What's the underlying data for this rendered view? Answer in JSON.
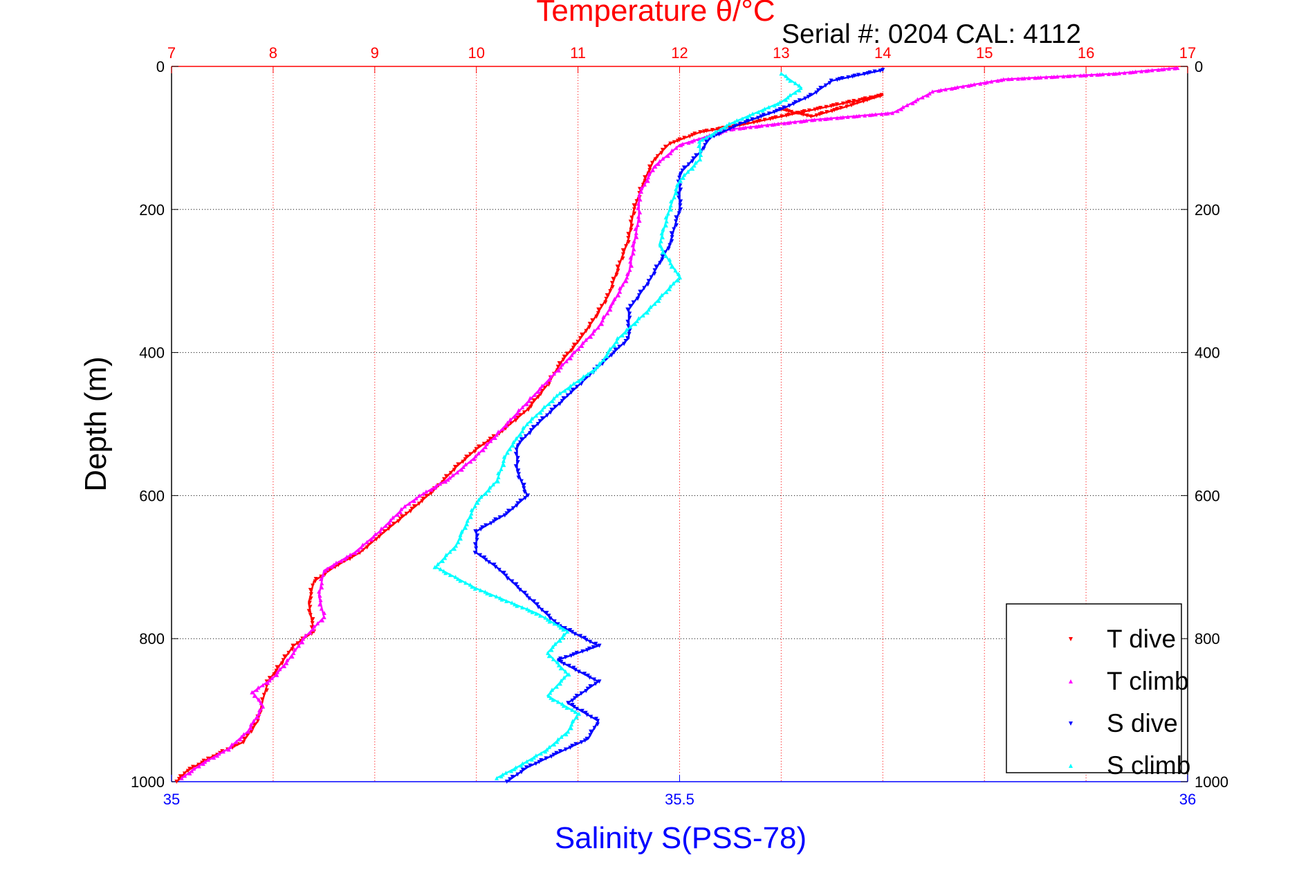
{
  "chart_data": {
    "type": "scatter",
    "title": "Temperature θ/°C",
    "annotation": "Serial #: 0204  CAL: 4112",
    "ylabel": "Depth (m)",
    "xlabel": "Salinity S(PSS-78)",
    "temperature_axis": {
      "position": "top",
      "range": [
        7,
        17
      ],
      "ticks": [
        7,
        8,
        9,
        10,
        11,
        12,
        13,
        14,
        15,
        16,
        17
      ],
      "tick_labels": [
        "7",
        "8",
        "9",
        "10",
        "11",
        "12",
        "13",
        "14",
        "15",
        "16",
        "17"
      ],
      "color": "#ff0000",
      "grid": true
    },
    "salinity_axis": {
      "position": "bottom",
      "range": [
        35,
        36
      ],
      "ticks": [
        35,
        35.5,
        36
      ],
      "tick_labels": [
        "35",
        "35.5",
        "36"
      ],
      "color": "#0000ff"
    },
    "depth_axis": {
      "range": [
        0,
        1000
      ],
      "reversed": true,
      "ticks": [
        0,
        200,
        400,
        600,
        800,
        1000
      ],
      "tick_labels": [
        "0",
        "200",
        "400",
        "600",
        "800",
        "1000"
      ],
      "grid": true
    },
    "legend": {
      "position": "bottom-right"
    },
    "series": [
      {
        "name": "T dive",
        "axis": "temperature",
        "marker": "triangle-down",
        "color": "#ff0000",
        "points": [
          [
            13.0,
            60
          ],
          [
            13.3,
            70
          ],
          [
            13.6,
            58
          ],
          [
            14.0,
            40
          ],
          [
            12.6,
            82
          ],
          [
            12.2,
            92
          ],
          [
            11.9,
            108
          ],
          [
            11.75,
            130
          ],
          [
            11.65,
            160
          ],
          [
            11.55,
            200
          ],
          [
            11.5,
            240
          ],
          [
            11.4,
            280
          ],
          [
            11.3,
            320
          ],
          [
            11.15,
            355
          ],
          [
            11.0,
            385
          ],
          [
            10.85,
            410
          ],
          [
            10.7,
            445
          ],
          [
            10.5,
            480
          ],
          [
            10.25,
            510
          ],
          [
            10.0,
            535
          ],
          [
            9.8,
            560
          ],
          [
            9.6,
            590
          ],
          [
            9.4,
            615
          ],
          [
            9.1,
            650
          ],
          [
            8.85,
            680
          ],
          [
            8.6,
            700
          ],
          [
            8.4,
            720
          ],
          [
            8.35,
            750
          ],
          [
            8.4,
            790
          ],
          [
            8.2,
            810
          ],
          [
            8.05,
            840
          ],
          [
            7.95,
            860
          ],
          [
            7.9,
            885
          ],
          [
            7.85,
            915
          ],
          [
            7.7,
            945
          ],
          [
            7.4,
            965
          ],
          [
            7.15,
            985
          ],
          [
            7.05,
            1000
          ]
        ]
      },
      {
        "name": "T climb",
        "axis": "temperature",
        "marker": "triangle-up",
        "color": "#ff00ff",
        "points": [
          [
            16.9,
            2
          ],
          [
            16.3,
            10
          ],
          [
            15.2,
            18
          ],
          [
            14.5,
            35
          ],
          [
            14.1,
            65
          ],
          [
            13.3,
            75
          ],
          [
            12.5,
            88
          ],
          [
            12.0,
            110
          ],
          [
            11.75,
            140
          ],
          [
            11.6,
            180
          ],
          [
            11.6,
            210
          ],
          [
            11.55,
            250
          ],
          [
            11.5,
            290
          ],
          [
            11.35,
            330
          ],
          [
            11.2,
            365
          ],
          [
            11.0,
            395
          ],
          [
            10.8,
            425
          ],
          [
            10.6,
            455
          ],
          [
            10.4,
            485
          ],
          [
            10.2,
            515
          ],
          [
            10.0,
            545
          ],
          [
            9.75,
            575
          ],
          [
            9.45,
            600
          ],
          [
            9.3,
            615
          ],
          [
            9.05,
            650
          ],
          [
            8.8,
            680
          ],
          [
            8.5,
            705
          ],
          [
            8.45,
            740
          ],
          [
            8.5,
            770
          ],
          [
            8.3,
            800
          ],
          [
            8.15,
            830
          ],
          [
            8.0,
            855
          ],
          [
            7.8,
            875
          ],
          [
            7.9,
            895
          ],
          [
            7.75,
            930
          ],
          [
            7.55,
            955
          ],
          [
            7.3,
            975
          ],
          [
            7.1,
            995
          ]
        ]
      },
      {
        "name": "S dive",
        "axis": "salinity",
        "marker": "triangle-down",
        "color": "#0000ff",
        "points": [
          [
            35.7,
            5
          ],
          [
            35.65,
            20
          ],
          [
            35.63,
            40
          ],
          [
            35.6,
            60
          ],
          [
            35.56,
            80
          ],
          [
            35.53,
            100
          ],
          [
            35.52,
            120
          ],
          [
            35.5,
            150
          ],
          [
            35.5,
            200
          ],
          [
            35.49,
            250
          ],
          [
            35.47,
            300
          ],
          [
            35.45,
            340
          ],
          [
            35.45,
            380
          ],
          [
            35.42,
            420
          ],
          [
            35.39,
            460
          ],
          [
            35.36,
            500
          ],
          [
            35.34,
            530
          ],
          [
            35.34,
            565
          ],
          [
            35.35,
            600
          ],
          [
            35.33,
            625
          ],
          [
            35.3,
            650
          ],
          [
            35.3,
            680
          ],
          [
            35.32,
            700
          ],
          [
            35.35,
            740
          ],
          [
            35.38,
            780
          ],
          [
            35.42,
            810
          ],
          [
            35.38,
            830
          ],
          [
            35.42,
            860
          ],
          [
            35.39,
            890
          ],
          [
            35.42,
            915
          ],
          [
            35.41,
            940
          ],
          [
            35.38,
            960
          ],
          [
            35.35,
            980
          ],
          [
            35.33,
            1000
          ]
        ]
      },
      {
        "name": "S climb",
        "axis": "salinity",
        "marker": "triangle-up",
        "color": "#00ffff",
        "points": [
          [
            35.6,
            10
          ],
          [
            35.62,
            30
          ],
          [
            35.6,
            50
          ],
          [
            35.55,
            80
          ],
          [
            35.52,
            105
          ],
          [
            35.52,
            130
          ],
          [
            35.5,
            160
          ],
          [
            35.49,
            200
          ],
          [
            35.48,
            250
          ],
          [
            35.5,
            295
          ],
          [
            35.47,
            340
          ],
          [
            35.44,
            380
          ],
          [
            35.42,
            420
          ],
          [
            35.38,
            460
          ],
          [
            35.35,
            500
          ],
          [
            35.33,
            540
          ],
          [
            35.32,
            580
          ],
          [
            35.3,
            610
          ],
          [
            35.29,
            640
          ],
          [
            35.28,
            670
          ],
          [
            35.26,
            700
          ],
          [
            35.3,
            730
          ],
          [
            35.36,
            765
          ],
          [
            35.39,
            790
          ],
          [
            35.37,
            820
          ],
          [
            35.39,
            850
          ],
          [
            35.37,
            880
          ],
          [
            35.4,
            905
          ],
          [
            35.39,
            930
          ],
          [
            35.37,
            955
          ],
          [
            35.34,
            980
          ],
          [
            35.32,
            995
          ]
        ]
      }
    ]
  }
}
